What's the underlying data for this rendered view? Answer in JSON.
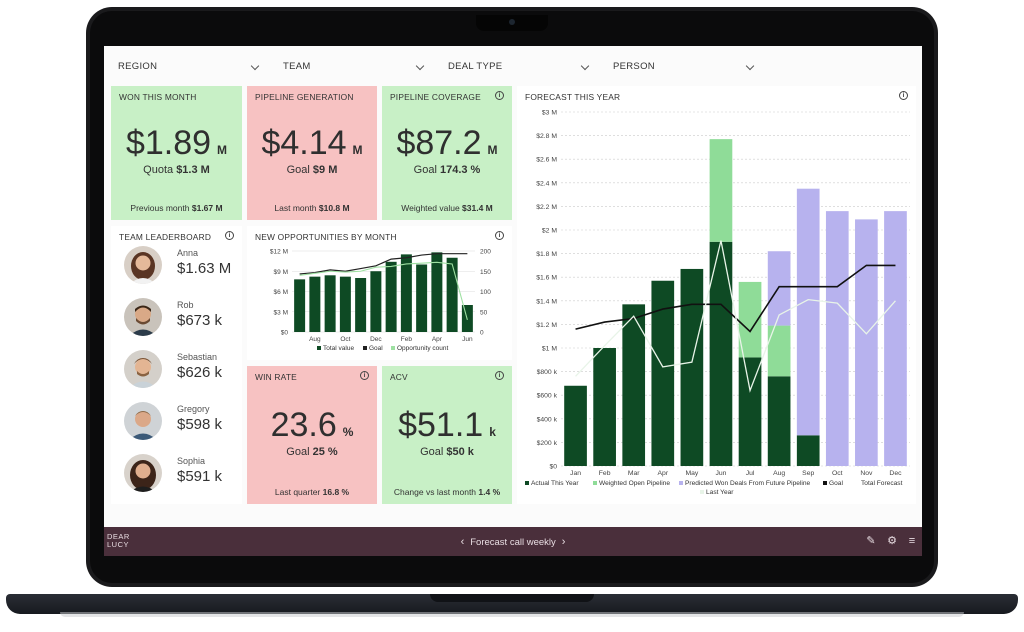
{
  "filters": [
    {
      "label": "REGION"
    },
    {
      "label": "TEAM"
    },
    {
      "label": "DEAL TYPE"
    },
    {
      "label": "PERSON"
    }
  ],
  "won_this_month": {
    "title": "WON THIS MONTH",
    "value": "$1.89",
    "unit": "M",
    "sub_label": "Quota",
    "sub_value": "$1.3 M",
    "foot_label": "Previous month",
    "foot_value": "$1.67 M"
  },
  "pipeline_generation": {
    "title": "PIPELINE GENERATION",
    "value": "$4.14",
    "unit": "M",
    "sub_label": "Goal",
    "sub_value": "$9 M",
    "foot_label": "Last month",
    "foot_value": "$10.8 M"
  },
  "pipeline_coverage": {
    "title": "PIPELINE COVERAGE",
    "value": "$87.2",
    "unit": "M",
    "sub_label": "Goal",
    "sub_value": "174.3 %",
    "foot_label": "Weighted value",
    "foot_value": "$31.4 M"
  },
  "win_rate": {
    "title": "WIN RATE",
    "value": "23.6",
    "unit": "%",
    "sub_label": "Goal",
    "sub_value": "25 %",
    "foot_label": "Last quarter",
    "foot_value": "16.8 %"
  },
  "acv": {
    "title": "ACV",
    "value": "$51.1",
    "unit": "k",
    "sub_label": "Goal",
    "sub_value": "$50 k",
    "foot_label": "Change vs last month",
    "foot_value": "1.4 %"
  },
  "leaderboard": {
    "title": "TEAM LEADERBOARD",
    "people": [
      {
        "name": "Anna",
        "value": "$1.63 M"
      },
      {
        "name": "Rob",
        "value": "$673 k"
      },
      {
        "name": "Sebastian",
        "value": "$626 k"
      },
      {
        "name": "Gregory",
        "value": "$598 k"
      },
      {
        "name": "Sophia",
        "value": "$591 k"
      }
    ]
  },
  "bottom_bar": {
    "logo_line1": "DEAR",
    "logo_line2": "LUCY",
    "nav_label": "Forecast call weekly"
  },
  "colors": {
    "green": "#c8f0c6",
    "red": "#f7c2c2",
    "dark_green": "#0e4a24",
    "light_green": "#8fdc98",
    "lavender": "#b7b2ee",
    "bar": "#4a2f3b"
  },
  "chart_data": [
    {
      "type": "bar",
      "title": "NEW OPPORTUNITIES BY MONTH",
      "categories": [
        "Jul",
        "Aug",
        "Sep",
        "Oct",
        "Nov",
        "Dec",
        "Jan",
        "Feb",
        "Mar",
        "Apr",
        "May",
        "Jun"
      ],
      "x_tick_labels": [
        "Aug",
        "Oct",
        "Dec",
        "Feb",
        "Apr",
        "Jun"
      ],
      "y_left_ticks": [
        "$0",
        "$3 M",
        "$6 M",
        "$9 M",
        "$12 M"
      ],
      "y_right_ticks": [
        "0",
        "50",
        "100",
        "150",
        "200"
      ],
      "ylim_left": [
        0,
        12
      ],
      "ylim_right": [
        0,
        200
      ],
      "series": [
        {
          "name": "Total value",
          "kind": "bar",
          "axis": "left",
          "values": [
            7.8,
            8.2,
            8.4,
            8.2,
            8.0,
            9.0,
            10.4,
            11.5,
            10.0,
            11.8,
            11.0,
            4.0
          ]
        },
        {
          "name": "Goal",
          "kind": "line",
          "axis": "left",
          "values": [
            8.6,
            8.8,
            9.2,
            9.0,
            9.4,
            9.8,
            10.8,
            11.0,
            11.4,
            11.6,
            11.6,
            11.6
          ]
        },
        {
          "name": "Opportunity count",
          "kind": "line",
          "axis": "right",
          "values": [
            140,
            145,
            150,
            148,
            150,
            160,
            162,
            168,
            170,
            172,
            168,
            30
          ]
        }
      ],
      "legend": [
        "Total value",
        "Goal",
        "Opportunity count"
      ]
    },
    {
      "type": "bar",
      "title": "FORECAST THIS YEAR",
      "categories": [
        "Jan",
        "Feb",
        "Mar",
        "Apr",
        "May",
        "Jun",
        "Jul",
        "Aug",
        "Sep",
        "Oct",
        "Nov",
        "Dec"
      ],
      "y_ticks": [
        "$0",
        "$200 k",
        "$400 k",
        "$600 k",
        "$800 k",
        "$1 M",
        "$1.2 M",
        "$1.4 M",
        "$1.6 M",
        "$1.8 M",
        "$2 M",
        "$2.2 M",
        "$2.4 M",
        "$2.6 M",
        "$2.8 M",
        "$3 M"
      ],
      "ylim": [
        0,
        3000000
      ],
      "series": [
        {
          "name": "Actual This Year",
          "kind": "bar",
          "values": [
            680000,
            1000000,
            1370000,
            1570000,
            1670000,
            1900000,
            920000,
            760000,
            260000,
            0,
            0,
            0
          ]
        },
        {
          "name": "Weighted Open Pipeline",
          "kind": "bar",
          "values": [
            0,
            0,
            0,
            0,
            0,
            870000,
            640000,
            430000,
            0,
            0,
            0,
            0
          ]
        },
        {
          "name": "Predicted Won Deals From Future Pipeline",
          "kind": "bar",
          "values": [
            0,
            0,
            0,
            0,
            0,
            0,
            0,
            630000,
            2090000,
            2160000,
            2090000,
            2160000
          ]
        },
        {
          "name": "Goal",
          "kind": "line",
          "values": [
            1160000,
            1220000,
            1250000,
            1330000,
            1370000,
            1370000,
            1140000,
            1520000,
            1520000,
            1520000,
            1700000,
            1700000
          ]
        },
        {
          "name": "Last Year",
          "kind": "line",
          "values": [
            760000,
            1020000,
            1270000,
            840000,
            880000,
            1910000,
            640000,
            1280000,
            1410000,
            1380000,
            1120000,
            1400000
          ]
        }
      ],
      "total_label": "Total Forecast",
      "legend": [
        "Actual This Year",
        "Weighted Open Pipeline",
        "Predicted Won Deals From Future Pipeline",
        "Goal",
        "Total Forecast",
        "Last Year"
      ]
    }
  ]
}
